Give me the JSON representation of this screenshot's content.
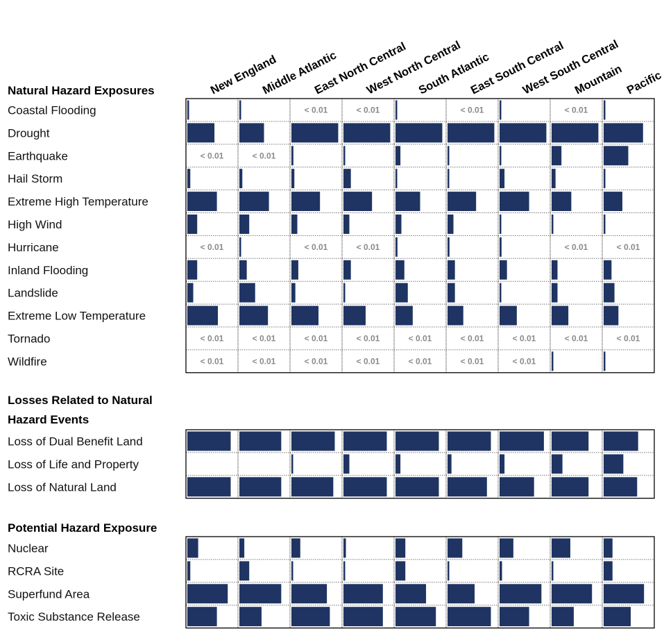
{
  "chart_data": {
    "type": "bar",
    "title": "",
    "colors": {
      "bar": "#1f3462"
    },
    "small_value_label": "< 0.01",
    "regions": [
      "New England",
      "Middle Atlantic",
      "East North Central",
      "West North Central",
      "South Atlantic",
      "East South Central",
      "West South Central",
      "Mountain",
      "Pacific"
    ],
    "groups": [
      {
        "title_lines": [
          "Natural Hazard Exposures"
        ],
        "rows": [
          {
            "label": "Coastal Flooding",
            "values": [
              0.02,
              0.02,
              "<0.01",
              "<0.01",
              0.02,
              "<0.01",
              0.01,
              "<0.01",
              0.02
            ]
          },
          {
            "label": "Drought",
            "values": [
              0.55,
              0.5,
              0.95,
              0.95,
              0.95,
              0.95,
              0.95,
              0.95,
              0.8
            ]
          },
          {
            "label": "Earthquake",
            "values": [
              "<0.01",
              "<0.01",
              0.04,
              0.02,
              0.1,
              0.01,
              0.02,
              0.2,
              0.5
            ]
          },
          {
            "label": "Hail Storm",
            "values": [
              0.06,
              0.06,
              0.06,
              0.15,
              0.02,
              0.02,
              0.1,
              0.08,
              0.02
            ]
          },
          {
            "label": "Extreme High Temperature",
            "values": [
              0.6,
              0.6,
              0.58,
              0.58,
              0.5,
              0.58,
              0.6,
              0.4,
              0.38
            ]
          },
          {
            "label": "High Wind",
            "values": [
              0.2,
              0.2,
              0.12,
              0.12,
              0.12,
              0.12,
              0.03,
              0.02,
              0.02
            ]
          },
          {
            "label": "Hurricane",
            "values": [
              "<0.01",
              0.02,
              "<0.01",
              "<0.01",
              0.04,
              0.04,
              0.04,
              "<0.01",
              "<0.01"
            ]
          },
          {
            "label": "Inland Flooding",
            "values": [
              0.2,
              0.15,
              0.14,
              0.15,
              0.18,
              0.15,
              0.15,
              0.12,
              0.16
            ]
          },
          {
            "label": "Landslide",
            "values": [
              0.12,
              0.32,
              0.08,
              0.02,
              0.25,
              0.15,
              0.02,
              0.12,
              0.22
            ]
          },
          {
            "label": "Extreme Low Temperature",
            "values": [
              0.62,
              0.58,
              0.55,
              0.45,
              0.35,
              0.32,
              0.35,
              0.34,
              0.3
            ]
          },
          {
            "label": "Tornado",
            "values": [
              "<0.01",
              "<0.01",
              "<0.01",
              "<0.01",
              "<0.01",
              "<0.01",
              "<0.01",
              "<0.01",
              "<0.01"
            ]
          },
          {
            "label": "Wildfire",
            "values": [
              "<0.01",
              "<0.01",
              "<0.01",
              "<0.01",
              "<0.01",
              "<0.01",
              "<0.01",
              0.02,
              0.03
            ]
          }
        ]
      },
      {
        "title_lines": [
          "Losses Related to Natural",
          "Hazard Events"
        ],
        "rows": [
          {
            "label": "Loss of Dual Benefit Land",
            "values": [
              0.88,
              0.85,
              0.88,
              0.88,
              0.88,
              0.88,
              0.9,
              0.75,
              0.7
            ]
          },
          {
            "label": "Loss of Life and Property",
            "values": [
              0.0,
              0.0,
              0.02,
              0.12,
              0.1,
              0.08,
              0.1,
              0.22,
              0.4
            ]
          },
          {
            "label": "Loss of Natural Land",
            "values": [
              0.88,
              0.85,
              0.85,
              0.88,
              0.88,
              0.8,
              0.7,
              0.75,
              0.68
            ]
          }
        ]
      },
      {
        "title_lines": [
          "Potential Hazard Exposure"
        ],
        "rows": [
          {
            "label": "Nuclear",
            "values": [
              0.22,
              0.1,
              0.18,
              0.05,
              0.2,
              0.3,
              0.28,
              0.38,
              0.18
            ]
          },
          {
            "label": "RCRA Site",
            "values": [
              0.06,
              0.2,
              0.03,
              0.02,
              0.2,
              0.03,
              0.05,
              0.01,
              0.18
            ]
          },
          {
            "label": "Superfund Area",
            "values": [
              0.82,
              0.85,
              0.72,
              0.8,
              0.62,
              0.55,
              0.85,
              0.82,
              0.82
            ]
          },
          {
            "label": "Toxic Substance Release",
            "values": [
              0.6,
              0.45,
              0.78,
              0.8,
              0.82,
              0.88,
              0.6,
              0.45,
              0.55
            ]
          }
        ]
      }
    ]
  }
}
